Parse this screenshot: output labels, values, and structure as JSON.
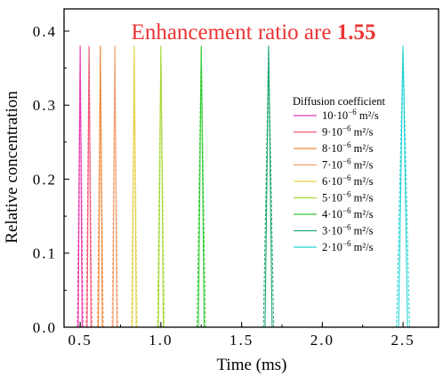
{
  "chart_data": {
    "type": "line",
    "annotation": {
      "prefix": "Enhancement ratio are ",
      "value": "1.55",
      "color": "#ee3333"
    },
    "xlabel": "Time (ms)",
    "ylabel": "Relative concentration",
    "xlim": [
      0.4,
      2.72
    ],
    "ylim": [
      0,
      0.43
    ],
    "xticks": [
      {
        "value": 0.5,
        "label": "0.5"
      },
      {
        "value": 1.0,
        "label": "1.0"
      },
      {
        "value": 1.5,
        "label": "1.5"
      },
      {
        "value": 2.0,
        "label": "2.0"
      },
      {
        "value": 2.5,
        "label": "2.5"
      }
    ],
    "yticks": [
      {
        "value": 0.0,
        "label": "0.0"
      },
      {
        "value": 0.1,
        "label": "0.1"
      },
      {
        "value": 0.2,
        "label": "0.2"
      },
      {
        "value": 0.3,
        "label": "0.3"
      },
      {
        "value": 0.4,
        "label": "0.4"
      }
    ],
    "grid": false,
    "legend": {
      "title": "Diffusion coefficient",
      "placement": "right"
    },
    "peak_value": 0.38,
    "series": [
      {
        "coef": "10",
        "unit": "m²/s",
        "peak_x": 0.5,
        "half_width": 0.012,
        "color": "#e83ab0"
      },
      {
        "coef": "9",
        "unit": "m²/s",
        "peak_x": 0.555,
        "half_width": 0.012,
        "color": "#f25a78"
      },
      {
        "coef": "8",
        "unit": "m²/s",
        "peak_x": 0.625,
        "half_width": 0.012,
        "color": "#f08a3c"
      },
      {
        "coef": "7",
        "unit": "m²/s",
        "peak_x": 0.715,
        "half_width": 0.012,
        "color": "#f2a070"
      },
      {
        "coef": "6",
        "unit": "m²/s",
        "peak_x": 0.835,
        "half_width": 0.012,
        "color": "#e6d24a"
      },
      {
        "coef": "5",
        "unit": "m²/s",
        "peak_x": 1.0,
        "half_width": 0.015,
        "color": "#a8d83a"
      },
      {
        "coef": "4",
        "unit": "m²/s",
        "peak_x": 1.25,
        "half_width": 0.018,
        "color": "#33cc33"
      },
      {
        "coef": "3",
        "unit": "m²/s",
        "peak_x": 1.667,
        "half_width": 0.022,
        "color": "#1fa870"
      },
      {
        "coef": "2",
        "unit": "m²/s",
        "peak_x": 2.5,
        "half_width": 0.028,
        "color": "#22d3d3"
      }
    ]
  }
}
